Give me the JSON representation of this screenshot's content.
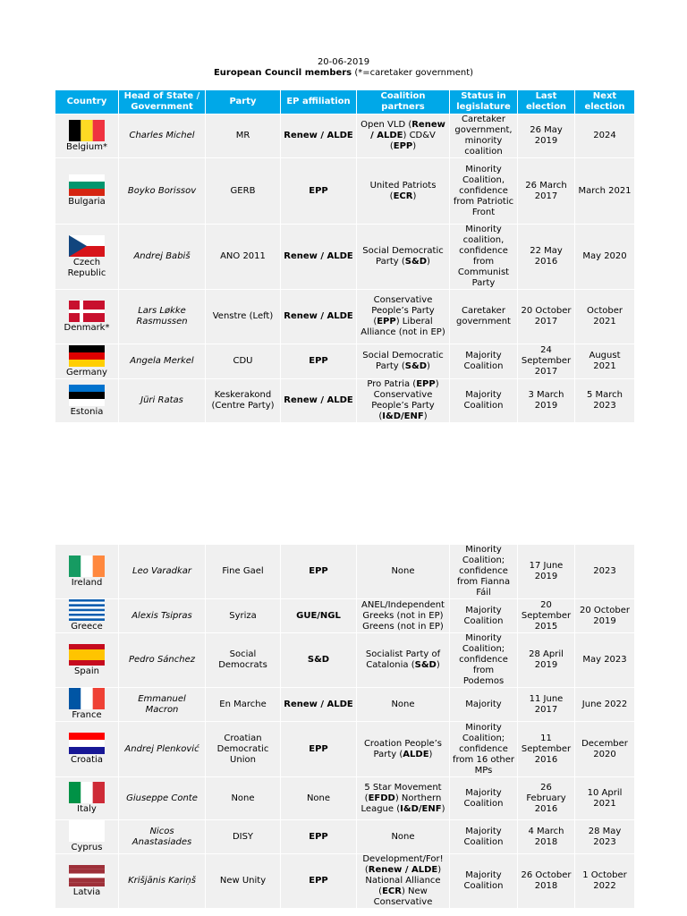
{
  "header": {
    "date": "20-06-2019",
    "title": [
      {
        "t": "European Council members",
        "b": true
      },
      {
        "t": " (*=caretaker government)",
        "b": false
      }
    ]
  },
  "columns": [
    "Country",
    "Head of State / Government",
    "Party",
    "EP affiliation",
    "Coalition partners",
    "Status in legislature",
    "Last election",
    "Next election"
  ],
  "tables": [
    {
      "rows": [
        {
          "country": "Belgium*",
          "flag": {
            "dir": "v",
            "colors": [
              "#000000",
              "#fdda24",
              "#ef3340"
            ]
          },
          "head": "Charles Michel",
          "party": "MR",
          "ep": "Renew / ALDE",
          "coalition": [
            {
              "t": "Open VLD (",
              "b": false
            },
            {
              "t": "Renew / ALDE",
              "b": true
            },
            {
              "t": ") CD&V (",
              "b": false
            },
            {
              "t": "EPP",
              "b": true
            },
            {
              "t": ")",
              "b": false
            }
          ],
          "status": "Caretaker government, minority coalition",
          "last": "26 May 2019",
          "next": "2024"
        },
        {
          "country": "Bulgaria",
          "flag": {
            "dir": "h",
            "colors": [
              "#ffffff",
              "#00966e",
              "#d62612"
            ]
          },
          "head": "Boyko Borissov",
          "party": "GERB",
          "ep": "EPP",
          "coalition": [
            {
              "t": "United Patriots (",
              "b": false
            },
            {
              "t": "ECR",
              "b": true
            },
            {
              "t": ")",
              "b": false
            }
          ],
          "status": "Minority Coalition, confidence from Patriotic Front",
          "last": "26 March 2017",
          "next": "March 2021"
        },
        {
          "country": "Czech Republic",
          "flag": {
            "dir": "h",
            "colors": [
              "#ffffff",
              "#d7141a"
            ],
            "triangle": "#11457e"
          },
          "head": "Andrej Babiš",
          "party": "ANO 2011",
          "ep": "Renew / ALDE",
          "coalition": [
            {
              "t": "Social Democratic Party (",
              "b": false
            },
            {
              "t": "S&D",
              "b": true
            },
            {
              "t": ")",
              "b": false
            }
          ],
          "status": "Minority coalition, confidence from Communist Party",
          "last": "22 May 2016",
          "next": "May 2020"
        },
        {
          "country": "Denmark*",
          "flag": {
            "dir": "h",
            "colors": [
              "#c8102e"
            ],
            "cross": "#ffffff"
          },
          "head": "Lars Løkke Rasmussen",
          "party": "Venstre (Left)",
          "ep": "Renew / ALDE",
          "coalition": [
            {
              "t": "Conservative People’s Party (",
              "b": false
            },
            {
              "t": "EPP",
              "b": true
            },
            {
              "t": ") Liberal Alliance (not in EP)",
              "b": false
            }
          ],
          "status": "Caretaker government",
          "last": "20 October 2017",
          "next": "October 2021"
        },
        {
          "country": "Germany",
          "flag": {
            "dir": "h",
            "colors": [
              "#000000",
              "#dd0000",
              "#ffce00"
            ]
          },
          "head": "Angela Merkel",
          "party": "CDU",
          "ep": "EPP",
          "coalition": [
            {
              "t": "Social Democratic Party (",
              "b": false
            },
            {
              "t": "S&D",
              "b": true
            },
            {
              "t": ")",
              "b": false
            }
          ],
          "status": "Majority Coalition",
          "last": "24 September 2017",
          "next": "August 2021"
        },
        {
          "country": "Estonia",
          "flag": {
            "dir": "h",
            "colors": [
              "#0072ce",
              "#000000",
              "#ffffff"
            ]
          },
          "head": "Jüri Ratas",
          "party": "Keskerakond (Centre Party)",
          "ep": "Renew / ALDE",
          "coalition": [
            {
              "t": "Pro Patria (",
              "b": false
            },
            {
              "t": "EPP",
              "b": true
            },
            {
              "t": ") Conservative People’s Party (",
              "b": false
            },
            {
              "t": "I&D/ENF",
              "b": true
            },
            {
              "t": ")",
              "b": false
            }
          ],
          "status": "Majority Coalition",
          "last": "3 March 2019",
          "next": "5 March 2023"
        }
      ]
    },
    {
      "rows": [
        {
          "country": "Ireland",
          "flag": {
            "dir": "v",
            "colors": [
              "#169b62",
              "#ffffff",
              "#ff883e"
            ]
          },
          "head": "Leo Varadkar",
          "party": "Fine Gael",
          "ep": "EPP",
          "coalition": "None",
          "status": "Minority Coalition; confidence from Fianna Fáil",
          "last": "17 June 2019",
          "next": "2023"
        },
        {
          "country": "Greece",
          "flag": {
            "dir": "h",
            "colors": [
              "#0d5eaf",
              "#ffffff",
              "#0d5eaf",
              "#ffffff",
              "#0d5eaf",
              "#ffffff",
              "#0d5eaf",
              "#ffffff",
              "#0d5eaf"
            ]
          },
          "head": "Alexis Tsipras",
          "party": "Syriza",
          "ep": "GUE/NGL",
          "coalition": "ANEL/Independent Greeks (not in EP) Greens (not in EP)",
          "status": "Majority Coalition",
          "last": "20 September 2015",
          "next": "20 October 2019"
        },
        {
          "country": "Spain",
          "flag": {
            "dir": "h",
            "colors": [
              "#c60b1e",
              "#ffc400",
              "#ffc400",
              "#c60b1e"
            ]
          },
          "head": "Pedro Sánchez",
          "party": "Social Democrats",
          "ep": "S&D",
          "coalition": [
            {
              "t": "Socialist Party of Catalonia (",
              "b": false
            },
            {
              "t": "S&D",
              "b": true
            },
            {
              "t": ")",
              "b": false
            }
          ],
          "status": "Minority Coalition; confidence from Podemos",
          "last": "28 April 2019",
          "next": "May 2023"
        },
        {
          "country": "France",
          "flag": {
            "dir": "v",
            "colors": [
              "#0055a4",
              "#ffffff",
              "#ef4135"
            ]
          },
          "head": "Emmanuel Macron",
          "party": "En Marche",
          "ep": "Renew / ALDE",
          "coalition": "None",
          "status": "Majority",
          "last": "11 June 2017",
          "next": "June 2022"
        },
        {
          "country": "Croatia",
          "flag": {
            "dir": "h",
            "colors": [
              "#ff0000",
              "#ffffff",
              "#171796"
            ]
          },
          "head": "Andrej Plenković",
          "party": "Croatian Democratic Union",
          "ep": "EPP",
          "coalition": [
            {
              "t": "Croation People’s Party (",
              "b": false
            },
            {
              "t": "ALDE",
              "b": true
            },
            {
              "t": ")",
              "b": false
            }
          ],
          "status": "Minority Coalition; confidence from 16 other MPs",
          "last": "11 September 2016",
          "next": "December 2020"
        },
        {
          "country": "Italy",
          "flag": {
            "dir": "v",
            "colors": [
              "#009246",
              "#ffffff",
              "#ce2b37"
            ]
          },
          "head": "Giuseppe Conte",
          "party": "None",
          "ep": [
            {
              "t": "None",
              "b": false
            }
          ],
          "coalition": [
            {
              "t": "5 Star Movement (",
              "b": false
            },
            {
              "t": "EFDD",
              "b": true
            },
            {
              "t": ") Northern League (",
              "b": false
            },
            {
              "t": "I&D/ENF",
              "b": true
            },
            {
              "t": ")",
              "b": false
            }
          ],
          "status": "Majority Coalition",
          "last": "26 February 2016",
          "next": "10 April 2021"
        },
        {
          "country": "Cyprus",
          "flag": {
            "dir": "h",
            "colors": [
              "#ffffff"
            ]
          },
          "head": "Nicos Anastasiades",
          "party": "DISY",
          "ep": "EPP",
          "coalition": "None",
          "status": "Majority Coalition",
          "last": "4 March 2018",
          "next": "28 May 2023"
        },
        {
          "country": "Latvia",
          "flag": {
            "dir": "h",
            "colors": [
              "#9e3039",
              "#9e3039",
              "#ffffff",
              "#9e3039",
              "#9e3039"
            ]
          },
          "head": "Krišjānis Kariņš",
          "party": "New Unity",
          "ep": "EPP",
          "coalition": [
            {
              "t": "Development/For! (",
              "b": false
            },
            {
              "t": "Renew / ALDE",
              "b": true
            },
            {
              "t": ") National Alliance (",
              "b": false
            },
            {
              "t": "ECR",
              "b": true
            },
            {
              "t": ") New Conservative",
              "b": false
            }
          ],
          "status": "Majority Coalition",
          "last": "26 October 2018",
          "next": "1 October 2022"
        }
      ]
    }
  ]
}
